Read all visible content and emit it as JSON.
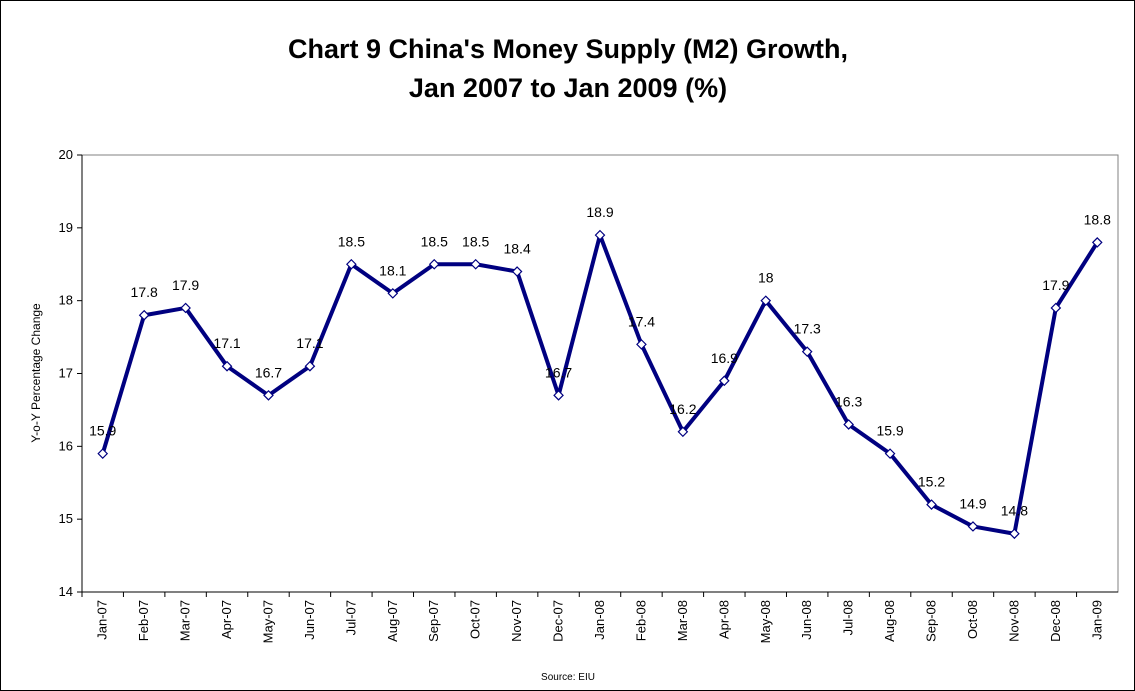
{
  "chart_data": {
    "type": "line",
    "title": [
      "Chart 9  China's Money Supply (M2) Growth,",
      "Jan 2007 to Jan 2009 (%)"
    ],
    "y_label": "Y-o-Y Percentage Change",
    "source": "Source: EIU",
    "categories": [
      "Jan-07",
      "Feb-07",
      "Mar-07",
      "Apr-07",
      "May-07",
      "Jun-07",
      "Jul-07",
      "Aug-07",
      "Sep-07",
      "Oct-07",
      "Nov-07",
      "Dec-07",
      "Jan-08",
      "Feb-08",
      "Mar-08",
      "Apr-08",
      "May-08",
      "Jun-08",
      "Jul-08",
      "Aug-08",
      "Sep-08",
      "Oct-08",
      "Nov-08",
      "Dec-08",
      "Jan-09"
    ],
    "series": [
      {
        "name": "M2 growth",
        "color": "#000080",
        "values": [
          15.9,
          17.8,
          17.9,
          17.1,
          16.7,
          17.1,
          18.5,
          18.1,
          18.5,
          18.5,
          18.4,
          16.7,
          18.9,
          17.4,
          16.2,
          16.9,
          18,
          17.3,
          16.3,
          15.9,
          15.2,
          14.9,
          14.8,
          17.9,
          18.8
        ]
      }
    ],
    "ylim": [
      14,
      20
    ],
    "yticks": [
      14,
      15,
      16,
      17,
      18,
      19,
      20
    ],
    "grid": false
  }
}
